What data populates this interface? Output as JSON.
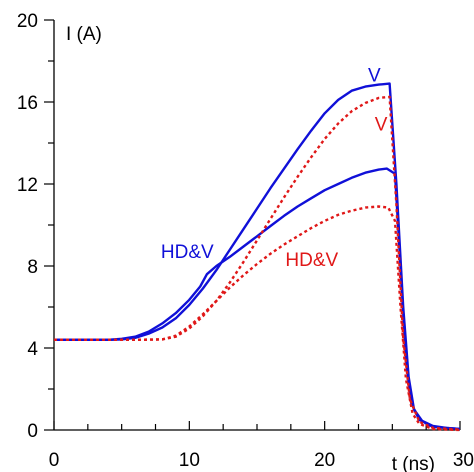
{
  "chart_data": {
    "type": "line",
    "title": "",
    "xlabel": "t (ns)",
    "ylabel": "I (A)",
    "xlim": [
      0,
      30
    ],
    "ylim": [
      0,
      20
    ],
    "x_ticks": [
      0,
      10,
      20,
      30
    ],
    "x_minor_step": 2.5,
    "y_ticks": [
      0,
      4,
      8,
      12,
      16,
      20
    ],
    "y_minor_step": 2,
    "grid": false,
    "legend": "none",
    "series": [
      {
        "color": "#1010d8",
        "style": "solid",
        "points": [
          [
            0,
            4.4
          ],
          [
            4,
            4.4
          ],
          [
            5,
            4.42
          ],
          [
            6,
            4.5
          ],
          [
            7,
            4.7
          ],
          [
            8,
            5.0
          ],
          [
            9,
            5.45
          ],
          [
            10,
            6.1
          ],
          [
            11,
            6.9
          ],
          [
            12,
            7.8
          ],
          [
            13,
            8.8
          ],
          [
            14,
            9.8
          ],
          [
            15,
            10.8
          ],
          [
            16,
            11.8
          ],
          [
            17,
            12.75
          ],
          [
            18,
            13.7
          ],
          [
            19,
            14.6
          ],
          [
            20,
            15.45
          ],
          [
            21,
            16.1
          ],
          [
            22,
            16.55
          ],
          [
            23,
            16.75
          ],
          [
            24,
            16.85
          ],
          [
            24.8,
            16.9
          ],
          [
            25.3,
            12.0
          ],
          [
            25.8,
            6.0
          ],
          [
            26.2,
            2.6
          ],
          [
            26.6,
            1.0
          ],
          [
            27.2,
            0.45
          ],
          [
            28,
            0.2
          ],
          [
            29,
            0.1
          ],
          [
            30,
            0.05
          ]
        ]
      },
      {
        "color": "#1010d8",
        "style": "solid",
        "points": [
          [
            0,
            4.4
          ],
          [
            4,
            4.4
          ],
          [
            5,
            4.45
          ],
          [
            6,
            4.55
          ],
          [
            7,
            4.8
          ],
          [
            8,
            5.2
          ],
          [
            9,
            5.7
          ],
          [
            10,
            6.35
          ],
          [
            10.8,
            7.0
          ],
          [
            11.3,
            7.6
          ],
          [
            12,
            8.0
          ],
          [
            13,
            8.45
          ],
          [
            14,
            8.95
          ],
          [
            15,
            9.45
          ],
          [
            16,
            9.95
          ],
          [
            17,
            10.45
          ],
          [
            18,
            10.9
          ],
          [
            19,
            11.3
          ],
          [
            20,
            11.7
          ],
          [
            21,
            12.0
          ],
          [
            22,
            12.3
          ],
          [
            23,
            12.55
          ],
          [
            24,
            12.7
          ],
          [
            24.6,
            12.75
          ],
          [
            25.2,
            12.5
          ],
          [
            25.6,
            8.0
          ],
          [
            26.0,
            3.5
          ],
          [
            26.4,
            1.3
          ],
          [
            27,
            0.5
          ],
          [
            28,
            0.15
          ],
          [
            30,
            0.05
          ]
        ]
      },
      {
        "color": "#e01818",
        "style": "dotted",
        "points": [
          [
            0,
            4.4
          ],
          [
            4,
            4.4
          ],
          [
            6,
            4.4
          ],
          [
            8,
            4.42
          ],
          [
            9,
            4.55
          ],
          [
            10,
            4.95
          ],
          [
            11,
            5.55
          ],
          [
            12,
            6.3
          ],
          [
            13,
            7.2
          ],
          [
            14,
            8.2
          ],
          [
            15,
            9.25
          ],
          [
            16,
            10.3
          ],
          [
            17,
            11.35
          ],
          [
            18,
            12.35
          ],
          [
            19,
            13.3
          ],
          [
            20,
            14.2
          ],
          [
            21,
            14.95
          ],
          [
            22,
            15.55
          ],
          [
            23,
            15.95
          ],
          [
            24,
            16.2
          ],
          [
            24.8,
            16.25
          ],
          [
            25.3,
            11.0
          ],
          [
            25.8,
            4.5
          ],
          [
            26.3,
            1.5
          ],
          [
            27,
            0.4
          ],
          [
            28,
            0.1
          ],
          [
            30,
            0.02
          ]
        ]
      },
      {
        "color": "#e01818",
        "style": "dotted",
        "points": [
          [
            0,
            4.4
          ],
          [
            4,
            4.4
          ],
          [
            6,
            4.4
          ],
          [
            8,
            4.42
          ],
          [
            9,
            4.6
          ],
          [
            10,
            5.05
          ],
          [
            11,
            5.65
          ],
          [
            12,
            6.3
          ],
          [
            13,
            6.95
          ],
          [
            14,
            7.55
          ],
          [
            15,
            8.1
          ],
          [
            16,
            8.6
          ],
          [
            17,
            9.05
          ],
          [
            18,
            9.45
          ],
          [
            19,
            9.85
          ],
          [
            20,
            10.2
          ],
          [
            21,
            10.5
          ],
          [
            22,
            10.7
          ],
          [
            23,
            10.85
          ],
          [
            24,
            10.9
          ],
          [
            24.7,
            10.85
          ],
          [
            25.2,
            10.2
          ],
          [
            25.6,
            6.0
          ],
          [
            26.0,
            2.5
          ],
          [
            26.5,
            0.8
          ],
          [
            27,
            0.3
          ],
          [
            28,
            0.05
          ],
          [
            30,
            0.0
          ]
        ]
      }
    ],
    "annotations": [
      {
        "text": "V",
        "x": 23.2,
        "y": 17.0,
        "color": "#1010d8"
      },
      {
        "text": "V",
        "x": 23.7,
        "y": 14.6,
        "color": "#e01818"
      },
      {
        "text": "HD&V",
        "x": 7.9,
        "y": 8.4,
        "color": "#1010d8"
      },
      {
        "text": "HD&V",
        "x": 17.1,
        "y": 8.0,
        "color": "#e01818"
      }
    ]
  }
}
